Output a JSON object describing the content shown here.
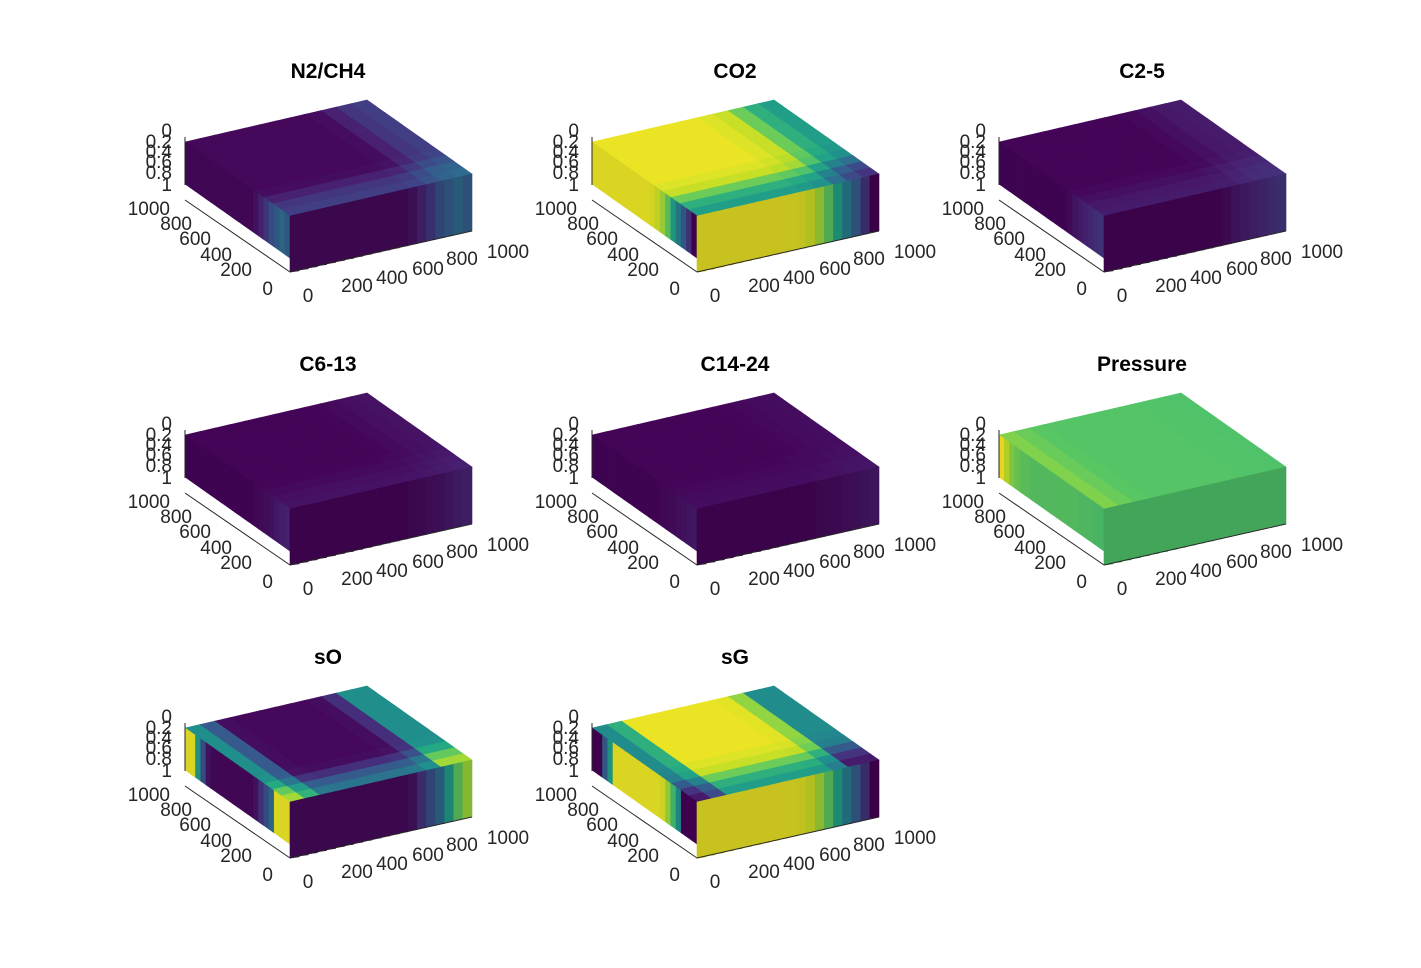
{
  "figure": {
    "panels": [
      {
        "title": "N2/CH4"
      },
      {
        "title": "CO2"
      },
      {
        "title": "C2-5"
      },
      {
        "title": "C6-13"
      },
      {
        "title": "C14-24"
      },
      {
        "title": "Pressure"
      },
      {
        "title": "sO"
      },
      {
        "title": "sG"
      }
    ]
  },
  "chart_data": [
    {
      "type": "heatmap",
      "title": "N2/CH4",
      "colormap": "viridis",
      "view": "3d-box",
      "x_ticks": [
        "0",
        "200",
        "400",
        "600",
        "800",
        "1000"
      ],
      "y_ticks": [
        "0",
        "200",
        "400",
        "600",
        "800",
        "1000"
      ],
      "z_ticks": [
        "0",
        "0.2",
        "0.4",
        "0.6",
        "0.8",
        "1"
      ],
      "xlim": [
        0,
        1000
      ],
      "ylim": [
        0,
        1000
      ],
      "zlim": [
        0,
        1
      ],
      "z_reversed": true,
      "front_profile": [
        0.02,
        0.02,
        0.02,
        0.02,
        0.02,
        0.02,
        0.02,
        0.02,
        0.02,
        0.02,
        0.02,
        0.02,
        0.02,
        0.05,
        0.1,
        0.17,
        0.25,
        0.3,
        0.35,
        0.3
      ],
      "right_profile": [
        0.02,
        0.02,
        0.02,
        0.02,
        0.02,
        0.02,
        0.02,
        0.02,
        0.02,
        0.02,
        0.02,
        0.02,
        0.02,
        0.05,
        0.1,
        0.17,
        0.25,
        0.3,
        0.35,
        0.3
      ]
    },
    {
      "type": "heatmap",
      "title": "CO2",
      "colormap": "viridis",
      "view": "3d-box",
      "x_ticks": [
        "0",
        "200",
        "400",
        "600",
        "800",
        "1000"
      ],
      "y_ticks": [
        "0",
        "200",
        "400",
        "600",
        "800",
        "1000"
      ],
      "z_ticks": [
        "0",
        "0.2",
        "0.4",
        "0.6",
        "0.8",
        "1"
      ],
      "xlim": [
        0,
        1000
      ],
      "ylim": [
        0,
        1000
      ],
      "zlim": [
        0,
        1
      ],
      "z_reversed": true,
      "front_profile": [
        0.97,
        0.97,
        0.97,
        0.97,
        0.97,
        0.97,
        0.97,
        0.97,
        0.97,
        0.97,
        0.97,
        0.96,
        0.93,
        0.86,
        0.75,
        0.58,
        0.42,
        0.3,
        0.15,
        0.0
      ],
      "right_profile": [
        0.97,
        0.97,
        0.97,
        0.97,
        0.97,
        0.97,
        0.97,
        0.97,
        0.97,
        0.97,
        0.97,
        0.96,
        0.93,
        0.86,
        0.75,
        0.58,
        0.42,
        0.3,
        0.15,
        0.0
      ]
    },
    {
      "type": "heatmap",
      "title": "C2-5",
      "colormap": "viridis",
      "view": "3d-box",
      "x_ticks": [
        "0",
        "200",
        "400",
        "600",
        "800",
        "1000"
      ],
      "y_ticks": [
        "0",
        "200",
        "400",
        "600",
        "800",
        "1000"
      ],
      "z_ticks": [
        "0",
        "0.2",
        "0.4",
        "0.6",
        "0.8",
        "1"
      ],
      "xlim": [
        0,
        1000
      ],
      "ylim": [
        0,
        1000
      ],
      "zlim": [
        0,
        1
      ],
      "z_reversed": true,
      "front_profile": [
        0.01,
        0.01,
        0.01,
        0.01,
        0.01,
        0.01,
        0.01,
        0.01,
        0.01,
        0.01,
        0.01,
        0.01,
        0.01,
        0.03,
        0.06,
        0.08,
        0.1,
        0.12,
        0.14,
        0.16
      ],
      "right_profile": [
        0.01,
        0.01,
        0.01,
        0.01,
        0.01,
        0.01,
        0.01,
        0.01,
        0.01,
        0.01,
        0.01,
        0.01,
        0.01,
        0.03,
        0.06,
        0.08,
        0.1,
        0.12,
        0.14,
        0.16
      ]
    },
    {
      "type": "heatmap",
      "title": "C6-13",
      "colormap": "viridis",
      "view": "3d-box",
      "x_ticks": [
        "0",
        "200",
        "400",
        "600",
        "800",
        "1000"
      ],
      "y_ticks": [
        "0",
        "200",
        "400",
        "600",
        "800",
        "1000"
      ],
      "z_ticks": [
        "0",
        "0.2",
        "0.4",
        "0.6",
        "0.8",
        "1"
      ],
      "xlim": [
        0,
        1000
      ],
      "ylim": [
        0,
        1000
      ],
      "zlim": [
        0,
        1
      ],
      "z_reversed": true,
      "front_profile": [
        0.01,
        0.01,
        0.01,
        0.01,
        0.01,
        0.01,
        0.01,
        0.01,
        0.01,
        0.01,
        0.01,
        0.01,
        0.01,
        0.02,
        0.03,
        0.04,
        0.05,
        0.07,
        0.09,
        0.1
      ],
      "right_profile": [
        0.01,
        0.01,
        0.01,
        0.01,
        0.01,
        0.01,
        0.01,
        0.01,
        0.01,
        0.01,
        0.01,
        0.01,
        0.01,
        0.02,
        0.03,
        0.04,
        0.05,
        0.07,
        0.09,
        0.1
      ]
    },
    {
      "type": "heatmap",
      "title": "C14-24",
      "colormap": "viridis",
      "view": "3d-box",
      "x_ticks": [
        "0",
        "200",
        "400",
        "600",
        "800",
        "1000"
      ],
      "y_ticks": [
        "0",
        "200",
        "400",
        "600",
        "800",
        "1000"
      ],
      "z_ticks": [
        "0",
        "0.2",
        "0.4",
        "0.6",
        "0.8",
        "1"
      ],
      "xlim": [
        0,
        1000
      ],
      "ylim": [
        0,
        1000
      ],
      "zlim": [
        0,
        1
      ],
      "z_reversed": true,
      "front_profile": [
        0.01,
        0.01,
        0.01,
        0.01,
        0.01,
        0.01,
        0.01,
        0.01,
        0.01,
        0.01,
        0.01,
        0.01,
        0.01,
        0.02,
        0.025,
        0.03,
        0.04,
        0.05,
        0.06,
        0.07
      ],
      "right_profile": [
        0.01,
        0.01,
        0.01,
        0.01,
        0.01,
        0.01,
        0.01,
        0.01,
        0.01,
        0.01,
        0.01,
        0.01,
        0.01,
        0.02,
        0.025,
        0.03,
        0.04,
        0.05,
        0.06,
        0.07
      ]
    },
    {
      "type": "heatmap",
      "title": "Pressure",
      "colormap": "viridis",
      "view": "3d-box",
      "x_ticks": [
        "0",
        "200",
        "400",
        "600",
        "800",
        "1000"
      ],
      "y_ticks": [
        "0",
        "200",
        "400",
        "600",
        "800",
        "1000"
      ],
      "z_ticks": [
        "0",
        "0.2",
        "0.4",
        "0.6",
        "0.8",
        "1"
      ],
      "xlim": [
        0,
        1000
      ],
      "ylim": [
        0,
        1000
      ],
      "zlim": [
        0,
        1
      ],
      "z_reversed": true,
      "front_profile": [
        0.99,
        0.9,
        0.82,
        0.78,
        0.76,
        0.75,
        0.74,
        0.74,
        0.74,
        0.74,
        0.74,
        0.74,
        0.74,
        0.74,
        0.74,
        0.73,
        0.73,
        0.73,
        0.72,
        0.72
      ],
      "right_profile": [
        0.72,
        0.72,
        0.72,
        0.72,
        0.72,
        0.72,
        0.72,
        0.72,
        0.72,
        0.72,
        0.72,
        0.72,
        0.72,
        0.72,
        0.72,
        0.72,
        0.72,
        0.72,
        0.72,
        0.72
      ]
    },
    {
      "type": "heatmap",
      "title": "sO",
      "colormap": "viridis",
      "view": "3d-box",
      "x_ticks": [
        "0",
        "200",
        "400",
        "600",
        "800",
        "1000"
      ],
      "y_ticks": [
        "0",
        "200",
        "400",
        "600",
        "800",
        "1000"
      ],
      "z_ticks": [
        "0",
        "0.2",
        "0.4",
        "0.6",
        "0.8",
        "1"
      ],
      "xlim": [
        0,
        1000
      ],
      "ylim": [
        0,
        1000
      ],
      "zlim": [
        0,
        1
      ],
      "z_reversed": true,
      "front_profile": [
        0.97,
        0.97,
        0.55,
        0.25,
        0.05,
        0.02,
        0.02,
        0.02,
        0.02,
        0.02,
        0.02,
        0.02,
        0.02,
        0.05,
        0.15,
        0.25,
        0.35,
        0.97,
        0.97,
        0.97
      ],
      "right_profile": [
        0.02,
        0.02,
        0.02,
        0.02,
        0.02,
        0.02,
        0.02,
        0.02,
        0.02,
        0.02,
        0.02,
        0.02,
        0.02,
        0.05,
        0.15,
        0.25,
        0.35,
        0.55,
        0.75,
        0.85
      ]
    },
    {
      "type": "heatmap",
      "title": "sG",
      "colormap": "viridis",
      "view": "3d-box",
      "x_ticks": [
        "0",
        "200",
        "400",
        "600",
        "800",
        "1000"
      ],
      "y_ticks": [
        "0",
        "200",
        "400",
        "600",
        "800",
        "1000"
      ],
      "z_ticks": [
        "0",
        "0.2",
        "0.4",
        "0.6",
        "0.8",
        "1"
      ],
      "xlim": [
        0,
        1000
      ],
      "ylim": [
        0,
        1000
      ],
      "zlim": [
        0,
        1
      ],
      "z_reversed": true,
      "front_profile": [
        0.0,
        0.0,
        0.3,
        0.55,
        0.97,
        0.97,
        0.97,
        0.97,
        0.97,
        0.97,
        0.97,
        0.97,
        0.97,
        0.95,
        0.85,
        0.7,
        0.5,
        0.0,
        0.0,
        0.0
      ],
      "right_profile": [
        0.97,
        0.97,
        0.97,
        0.97,
        0.97,
        0.97,
        0.97,
        0.97,
        0.97,
        0.97,
        0.97,
        0.96,
        0.93,
        0.86,
        0.75,
        0.58,
        0.42,
        0.3,
        0.15,
        0.0
      ]
    }
  ]
}
